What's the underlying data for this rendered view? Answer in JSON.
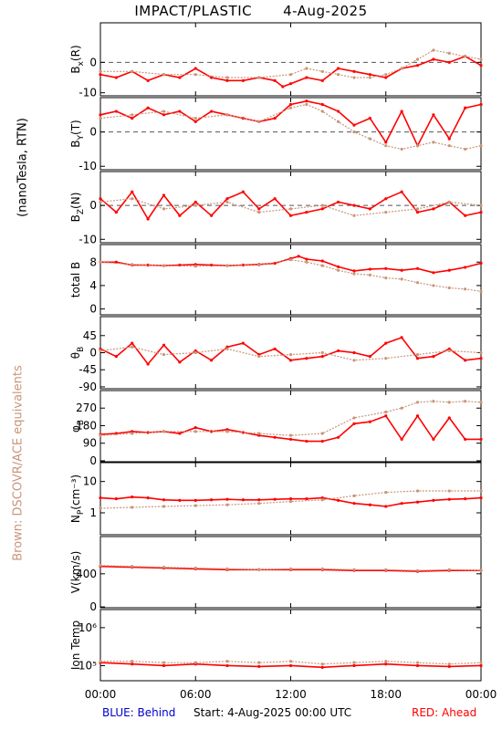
{
  "header": {
    "instrument": "IMPACT/PLASTIC",
    "date": "4-Aug-2025"
  },
  "side_labels": {
    "units": "(nanoTesla, RTN)",
    "reference": "Brown: DSCOVR/ACE equivalents"
  },
  "footer": {
    "behind": "BLUE: Behind",
    "start": "Start:  4-Aug-2025 00:00 UTC",
    "ahead": "RED: Ahead"
  },
  "colors": {
    "ahead": "#ff0000",
    "reference": "#c8957a",
    "behind": "#0000cc",
    "axis": "#000000"
  },
  "chart_data": {
    "type": "scatter",
    "x_tick_labels": [
      "00:00",
      "06:00",
      "12:00",
      "18:00",
      "00:00"
    ],
    "x_ticks_hours": [
      0,
      6,
      12,
      18,
      24
    ],
    "xlim": [
      0,
      24
    ],
    "panels": [
      {
        "id": "bx",
        "ylabel": "B",
        "ylabel_sub": "x",
        "ylabel_unit": "(R)",
        "ylim": [
          -11,
          13
        ],
        "yticks": [
          -10,
          0
        ],
        "ytick_labels": [
          "-10",
          "0"
        ],
        "zero_line": true,
        "series": [
          {
            "name": "Ahead",
            "x": [
              0,
              1,
              2,
              3,
              4,
              5,
              6,
              7,
              8,
              9,
              10,
              11,
              11.5,
              12,
              13,
              14,
              15,
              16,
              17,
              18,
              19,
              20,
              21,
              22,
              23,
              24
            ],
            "y": [
              -4,
              -5,
              -3,
              -6,
              -4,
              -5,
              -2,
              -5,
              -6,
              -6,
              -5,
              -6,
              -8,
              -7,
              -5,
              -6,
              -2,
              -3,
              -4,
              -5,
              -2,
              -1,
              1,
              0,
              2,
              -1
            ]
          },
          {
            "name": "Reference",
            "x": [
              0,
              2,
              4,
              6,
              8,
              10,
              12,
              13,
              14,
              15,
              16,
              17,
              18,
              19,
              20,
              21,
              22,
              23,
              24
            ],
            "y": [
              -3,
              -3,
              -4,
              -4,
              -5,
              -5,
              -4,
              -2,
              -3,
              -4,
              -5,
              -5,
              -4,
              -2,
              1,
              4,
              3,
              2,
              1
            ]
          }
        ]
      },
      {
        "id": "by",
        "ylabel": "B",
        "ylabel_sub": "Y",
        "ylabel_unit": "(T)",
        "ylim": [
          -11,
          10
        ],
        "yticks": [
          -10,
          0
        ],
        "ytick_labels": [
          "-10",
          "0"
        ],
        "zero_line": true,
        "series": [
          {
            "name": "Ahead",
            "x": [
              0,
              1,
              2,
              3,
              4,
              5,
              6,
              7,
              8,
              9,
              10,
              11,
              12,
              13,
              14,
              15,
              16,
              17,
              18,
              19,
              20,
              21,
              22,
              23,
              24
            ],
            "y": [
              5,
              6,
              4,
              7,
              5,
              6,
              3,
              6,
              5,
              4,
              3,
              4,
              8,
              9,
              8,
              6,
              2,
              4,
              -3,
              6,
              -4,
              5,
              -2,
              7,
              8
            ]
          },
          {
            "name": "Reference",
            "x": [
              0,
              2,
              4,
              6,
              8,
              10,
              12,
              13,
              14,
              15,
              16,
              17,
              18,
              19,
              20,
              21,
              22,
              23,
              24
            ],
            "y": [
              4,
              5,
              6,
              4,
              5,
              3,
              7,
              8,
              6,
              3,
              0,
              -2,
              -4,
              -5,
              -4,
              -3,
              -4,
              -5,
              -4
            ]
          }
        ]
      },
      {
        "id": "bz",
        "ylabel": "B",
        "ylabel_sub": "Z",
        "ylabel_unit": "(N)",
        "ylim": [
          -11,
          10
        ],
        "yticks": [
          -10,
          0
        ],
        "ytick_labels": [
          "-10",
          "0"
        ],
        "zero_line": true,
        "series": [
          {
            "name": "Ahead",
            "x": [
              0,
              1,
              2,
              3,
              4,
              5,
              6,
              7,
              8,
              9,
              10,
              11,
              12,
              13,
              14,
              15,
              16,
              17,
              18,
              19,
              20,
              21,
              22,
              23,
              24
            ],
            "y": [
              2,
              -2,
              4,
              -4,
              3,
              -3,
              1,
              -3,
              2,
              4,
              -1,
              2,
              -3,
              -2,
              -1,
              1,
              0,
              -1,
              2,
              4,
              -2,
              -1,
              1,
              -3,
              -2
            ]
          },
          {
            "name": "Reference",
            "x": [
              0,
              2,
              4,
              6,
              8,
              10,
              12,
              14,
              16,
              18,
              20,
              22,
              24
            ],
            "y": [
              1,
              2,
              -1,
              0,
              1,
              -2,
              -1,
              0,
              -3,
              -2,
              -1,
              1,
              0
            ]
          }
        ]
      },
      {
        "id": "btot",
        "ylabel": "total B",
        "ylabel_sub": "",
        "ylabel_unit": "",
        "ylim": [
          -1,
          11
        ],
        "yticks": [
          0,
          4,
          8
        ],
        "ytick_labels": [
          "0",
          "4",
          "8"
        ],
        "zero_line": false,
        "series": [
          {
            "name": "Ahead",
            "x": [
              0,
              1,
              2,
              3,
              4,
              5,
              6,
              7,
              8,
              9,
              10,
              11,
              12,
              12.5,
              13,
              14,
              15,
              16,
              17,
              18,
              19,
              20,
              21,
              22,
              23,
              24
            ],
            "y": [
              8,
              8,
              7.5,
              7.5,
              7.4,
              7.5,
              7.6,
              7.5,
              7.4,
              7.5,
              7.6,
              7.8,
              8.6,
              9,
              8.5,
              8.2,
              7.2,
              6.5,
              6.8,
              6.9,
              6.6,
              6.9,
              6.2,
              6.6,
              7.1,
              7.8
            ]
          },
          {
            "name": "Reference",
            "x": [
              0,
              2,
              4,
              6,
              8,
              10,
              12,
              13,
              14,
              15,
              16,
              17,
              18,
              19,
              20,
              21,
              22,
              23,
              24
            ],
            "y": [
              8,
              7.6,
              7.4,
              7.3,
              7.4,
              7.5,
              8.4,
              8,
              7.4,
              6.6,
              6,
              5.8,
              5.3,
              5.1,
              4.5,
              4,
              3.6,
              3.4,
              3
            ]
          }
        ]
      },
      {
        "id": "theta",
        "ylabel": "θ",
        "ylabel_sub": "B",
        "ylabel_unit": "",
        "ylim": [
          -95,
          95
        ],
        "yticks": [
          -90,
          -45,
          0,
          45
        ],
        "ytick_labels": [
          "-90",
          "-45",
          "0",
          "45"
        ],
        "zero_line": false,
        "series": [
          {
            "name": "Ahead",
            "x": [
              0,
              1,
              2,
              3,
              4,
              5,
              6,
              7,
              8,
              9,
              10,
              11,
              12,
              13,
              14,
              15,
              16,
              17,
              18,
              19,
              20,
              21,
              22,
              23,
              24
            ],
            "y": [
              10,
              -10,
              25,
              -30,
              20,
              -25,
              5,
              -20,
              15,
              25,
              -5,
              10,
              -20,
              -15,
              -10,
              5,
              0,
              -10,
              25,
              40,
              -15,
              -10,
              10,
              -20,
              -15
            ]
          },
          {
            "name": "Reference",
            "x": [
              0,
              2,
              4,
              6,
              8,
              10,
              12,
              14,
              16,
              18,
              20,
              22,
              24
            ],
            "y": [
              5,
              15,
              -5,
              0,
              10,
              -10,
              -5,
              0,
              -20,
              -15,
              -5,
              5,
              0
            ]
          }
        ]
      },
      {
        "id": "phi",
        "ylabel": "φ",
        "ylabel_sub": "B",
        "ylabel_unit": "",
        "ylim": [
          -5,
          360
        ],
        "yticks": [
          0,
          90,
          180,
          270
        ],
        "ytick_labels": [
          "0",
          "90",
          "180",
          "270"
        ],
        "zero_line": false,
        "series": [
          {
            "name": "Ahead",
            "x": [
              0,
              1,
              2,
              3,
              4,
              5,
              6,
              7,
              8,
              9,
              10,
              11,
              12,
              13,
              14,
              15,
              16,
              17,
              18,
              19,
              20,
              21,
              22,
              23,
              24
            ],
            "y": [
              135,
              140,
              150,
              145,
              150,
              140,
              170,
              150,
              160,
              145,
              130,
              120,
              110,
              100,
              100,
              120,
              190,
              200,
              230,
              110,
              230,
              110,
              220,
              110,
              110
            ]
          },
          {
            "name": "Reference",
            "x": [
              0,
              2,
              4,
              6,
              8,
              10,
              12,
              14,
              16,
              18,
              19,
              20,
              21,
              22,
              23,
              24
            ],
            "y": [
              130,
              140,
              150,
              150,
              150,
              140,
              130,
              140,
              220,
              250,
              270,
              300,
              305,
              300,
              305,
              300
            ]
          }
        ]
      },
      {
        "id": "np",
        "ylabel": "N",
        "ylabel_sub": "P",
        "ylabel_unit": "(cm⁻³)",
        "ylim": [
          0.2,
          40
        ],
        "log": true,
        "yticks": [
          1,
          10
        ],
        "ytick_labels": [
          "1",
          "10"
        ],
        "zero_line": false,
        "series": [
          {
            "name": "Ahead",
            "x": [
              0,
              1,
              2,
              3,
              4,
              5,
              6,
              7,
              8,
              9,
              10,
              11,
              12,
              13,
              14,
              15,
              16,
              17,
              18,
              19,
              20,
              21,
              22,
              23,
              24
            ],
            "y": [
              3,
              2.8,
              3.2,
              3,
              2.6,
              2.5,
              2.5,
              2.6,
              2.7,
              2.6,
              2.6,
              2.7,
              2.8,
              2.8,
              3,
              2.5,
              2,
              1.8,
              1.6,
              2,
              2.2,
              2.5,
              2.7,
              2.8,
              3
            ]
          },
          {
            "name": "Reference",
            "x": [
              0,
              2,
              4,
              6,
              8,
              10,
              12,
              14,
              16,
              18,
              20,
              22,
              24
            ],
            "y": [
              1.4,
              1.5,
              1.6,
              1.7,
              1.8,
              2,
              2.3,
              2.6,
              3.5,
              4.5,
              5,
              5,
              5
            ]
          }
        ]
      },
      {
        "id": "v",
        "ylabel": "V",
        "ylabel_sub": "",
        "ylabel_unit": "(km/s)",
        "ylim": [
          -10,
          850
        ],
        "yticks": [
          0,
          400
        ],
        "ytick_labels": [
          "0",
          "400"
        ],
        "zero_line": false,
        "series": [
          {
            "name": "Ahead",
            "x": [
              0,
              2,
              4,
              6,
              8,
              10,
              12,
              14,
              16,
              18,
              20,
              22,
              24
            ],
            "y": [
              490,
              480,
              470,
              460,
              450,
              450,
              450,
              450,
              440,
              440,
              430,
              440,
              440
            ]
          },
          {
            "name": "Reference",
            "x": [
              0,
              2,
              4,
              6,
              8,
              10,
              12,
              14,
              16,
              18,
              20,
              22,
              24
            ],
            "y": [
              500,
              490,
              480,
              470,
              460,
              450,
              460,
              460,
              450,
              450,
              440,
              450,
              440
            ]
          }
        ]
      },
      {
        "id": "temp",
        "ylabel": "Ion Temp",
        "ylabel_sub": "",
        "ylabel_unit": "",
        "ylim": [
          40000,
          3000000
        ],
        "log": true,
        "yticks": [
          100000,
          1000000
        ],
        "ytick_labels": [
          "10⁵",
          "10⁶"
        ],
        "zero_line": false,
        "series": [
          {
            "name": "Ahead",
            "x": [
              0,
              2,
              4,
              6,
              8,
              10,
              12,
              14,
              16,
              18,
              20,
              22,
              24
            ],
            "y": [
              120000,
              110000,
              100000,
              110000,
              100000,
              95000,
              100000,
              90000,
              100000,
              110000,
              100000,
              95000,
              100000
            ]
          },
          {
            "name": "Reference",
            "x": [
              0,
              2,
              4,
              6,
              8,
              10,
              12,
              14,
              16,
              18,
              20,
              22,
              24
            ],
            "y": [
              130000,
              130000,
              120000,
              120000,
              130000,
              120000,
              130000,
              110000,
              120000,
              130000,
              120000,
              110000,
              120000
            ]
          }
        ]
      }
    ]
  }
}
